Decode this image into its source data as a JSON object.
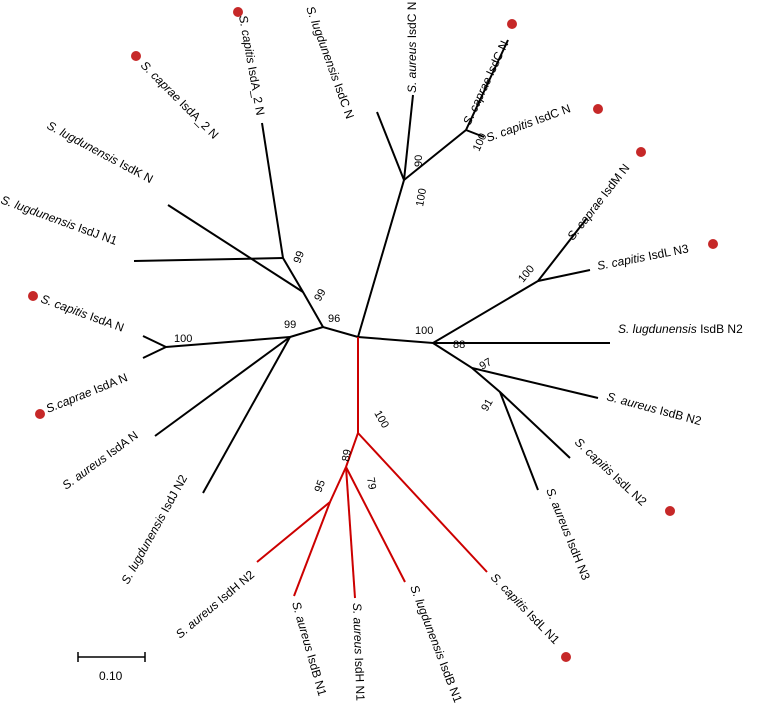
{
  "tree": {
    "labels": {
      "cap_IsdA2": {
        "species": "S. capitis",
        "gene": "IsdA_2 N",
        "marked": true
      },
      "lug_IsdC": {
        "species": "S. lugdunensis",
        "gene": "IsdC N",
        "marked": false
      },
      "aur_IsdC": {
        "species": "S. aureus",
        "gene": "IsdC N",
        "marked": false
      },
      "cpr_IsdC": {
        "species": "S. caprae",
        "gene": "IsdC N",
        "marked": true
      },
      "cap_IsdC": {
        "species": "S. capitis",
        "gene": "IsdC N",
        "marked": true
      },
      "cpr_IsdA2": {
        "species": "S. caprae",
        "gene": "IsdA_2 N",
        "marked": true
      },
      "lug_IsdK": {
        "species": "S. lugdunensis",
        "gene": "IsdK N",
        "marked": false
      },
      "lug_IsdJ1": {
        "species": "S. lugdunensis",
        "gene": "IsdJ N1",
        "marked": false
      },
      "cpr_IsdM": {
        "species": "S. caprae",
        "gene": "IsdM N",
        "marked": true
      },
      "cap_IsdL3": {
        "species": "S. capitis",
        "gene": "IsdL N3",
        "marked": true
      },
      "cap_IsdA": {
        "species": "S. capitis",
        "gene": "IsdA N",
        "marked": true
      },
      "lug_IsdB2": {
        "species": "S. lugdunensis",
        "gene": "IsdB N2",
        "marked": false
      },
      "cpr_IsdA": {
        "species": "S.caprae",
        "gene": "IsdA N",
        "marked": true
      },
      "aur_IsdB2": {
        "species": "S. aureus",
        "gene": "IsdB N2",
        "marked": false
      },
      "aur_IsdA": {
        "species": "S. aureus",
        "gene": "IsdA N",
        "marked": false
      },
      "cap_IsdL2": {
        "species": "S. capitis",
        "gene": "IsdL N2",
        "marked": true
      },
      "lug_IsdJ2": {
        "species": "S. lugdunensis",
        "gene": "IsdJ N2",
        "marked": false
      },
      "aur_IsdH3": {
        "species": "S. aureus",
        "gene": "IsdH N3",
        "marked": false
      },
      "aur_IsdH2": {
        "species": "S. aureus",
        "gene": "IsdH N2",
        "marked": false
      },
      "aur_IsdB1": {
        "species": "S. aureus",
        "gene": "IsdB N1",
        "marked": false
      },
      "aur_IsdH1": {
        "species": "S. aureus",
        "gene": "IsdH N1",
        "marked": false
      },
      "lug_IsdB1": {
        "species": "S. lugdunensis",
        "gene": "IsdB N1",
        "marked": false
      },
      "cap_IsdL1": {
        "species": "S. capitis",
        "gene": "IsdL N1",
        "marked": true
      }
    },
    "bootstrap": {
      "b90": "90",
      "b100c": "100",
      "b100root": "100",
      "b99a": "99",
      "b99b": "99",
      "b96": "96",
      "b99c": "99",
      "b100a": "100",
      "b100d": "100",
      "b100e": "100",
      "b88": "88",
      "b97": "97",
      "b91": "91",
      "b100red": "100",
      "b89": "89",
      "b95": "95",
      "b79": "79"
    },
    "scale_bar": {
      "label": "0.10"
    },
    "colors": {
      "branch": "#000000",
      "highlight_clade": "#cc0000",
      "marker": "#c62828"
    }
  }
}
